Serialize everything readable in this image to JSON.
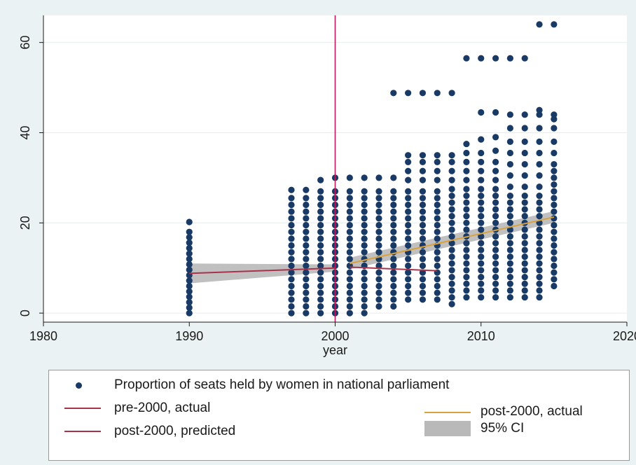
{
  "chart_data": {
    "type": "scatter",
    "xlabel": "year",
    "ylabel": "",
    "xlim": [
      1980,
      2020
    ],
    "ylim": [
      -2,
      66
    ],
    "x_ticks": [
      1980,
      1990,
      2000,
      2010,
      2020
    ],
    "y_ticks": [
      0,
      20,
      40,
      60
    ],
    "grid": true,
    "vline": 2000,
    "legend_position": "bottom",
    "colors": {
      "points": "#1a3a66",
      "pre_actual": "#a8324a",
      "post_actual": "#d9a23f",
      "post_predicted": "#a8324a",
      "ci": "#b9b9b9",
      "vline": "#c2185b",
      "background": "#eaf2f3",
      "plot_bg": "#ffffff"
    },
    "series": [
      {
        "name": "Proportion of seats held by women in national parliament",
        "kind": "points",
        "columns": [
          {
            "x": 1990,
            "values": [
              0,
              1.2,
              2.4,
              3.6,
              4.8,
              6,
              7.2,
              8.4,
              9.6,
              10.8,
              12,
              13.2,
              14.4,
              15.6,
              16.8,
              18,
              20.2
            ]
          },
          {
            "x": 1997,
            "values": [
              0,
              1.5,
              3,
              4.5,
              6,
              7.5,
              9,
              10.5,
              12,
              13.5,
              15,
              16.5,
              18,
              19.5,
              21,
              22.5,
              24,
              25.5,
              27.3
            ]
          },
          {
            "x": 1998,
            "values": [
              0,
              1.5,
              3,
              4.5,
              6,
              7.5,
              9,
              10.5,
              12,
              13.5,
              15,
              16.5,
              18,
              19.5,
              21,
              22.5,
              24,
              25.5,
              27.3
            ]
          },
          {
            "x": 1999,
            "values": [
              0,
              1.5,
              3,
              4.5,
              6,
              7.5,
              9,
              10.5,
              12,
              13.5,
              15,
              16.5,
              18,
              19.5,
              21,
              22.5,
              24,
              25.5,
              27,
              29.5
            ]
          },
          {
            "x": 2000,
            "values": [
              0,
              1.5,
              3,
              4.5,
              6,
              7.5,
              9,
              10.5,
              12,
              13.5,
              15,
              16.5,
              18,
              19.5,
              21,
              22.5,
              24,
              25.5,
              27,
              30
            ]
          },
          {
            "x": 2001,
            "values": [
              0,
              1.5,
              3,
              4.5,
              6,
              7.5,
              9,
              10.5,
              12,
              13.5,
              15,
              16.5,
              18,
              19.5,
              21,
              22.5,
              24,
              25.5,
              27,
              30
            ]
          },
          {
            "x": 2002,
            "values": [
              0,
              1.5,
              3,
              4.5,
              6,
              7.5,
              9,
              10.5,
              12,
              13.5,
              15,
              16.5,
              18,
              19.5,
              21,
              22.5,
              24,
              25.5,
              27,
              30
            ]
          },
          {
            "x": 2003,
            "values": [
              1.5,
              3,
              4.5,
              6,
              7.5,
              9,
              10.5,
              12,
              13.5,
              15,
              16.5,
              18,
              19.5,
              21,
              22.5,
              24,
              25.5,
              27,
              30
            ]
          },
          {
            "x": 2004,
            "values": [
              1.5,
              3,
              4.5,
              6,
              7.5,
              9,
              10.5,
              12,
              13.5,
              15,
              16.5,
              18,
              19.5,
              21,
              22.5,
              24,
              25.5,
              27,
              30,
              48.8
            ]
          },
          {
            "x": 2005,
            "values": [
              3,
              4.5,
              6,
              7.5,
              9,
              10.5,
              12,
              13.5,
              15,
              16.5,
              18,
              19.5,
              21,
              22.5,
              24,
              25.5,
              27,
              29.5,
              31.5,
              33.5,
              35,
              48.8
            ]
          },
          {
            "x": 2006,
            "values": [
              3,
              4.5,
              6,
              7.5,
              9,
              10.5,
              12,
              13.5,
              15,
              16.5,
              18,
              19.5,
              21,
              22.5,
              24,
              25.5,
              27,
              29.5,
              31.5,
              33.5,
              35,
              48.8
            ]
          },
          {
            "x": 2007,
            "values": [
              3,
              4.5,
              6,
              7.5,
              9,
              10.5,
              12,
              13.5,
              15,
              16.5,
              18,
              19.5,
              21,
              22.5,
              24,
              25.5,
              27,
              29.5,
              31.5,
              33.5,
              35,
              48.8
            ]
          },
          {
            "x": 2008,
            "values": [
              2,
              3.5,
              5,
              6.5,
              8,
              9.5,
              11,
              12.5,
              14,
              15.5,
              17,
              18.5,
              20,
              21.5,
              23,
              24.5,
              26,
              27.5,
              29.5,
              31.5,
              33.5,
              35,
              48.8
            ]
          },
          {
            "x": 2009,
            "values": [
              3.5,
              5,
              6.5,
              8,
              9.5,
              11,
              12.5,
              14,
              15.5,
              17,
              18.5,
              20,
              21.5,
              23,
              24.5,
              26,
              27.5,
              29.5,
              31.5,
              33.5,
              35.5,
              37.5,
              56.5
            ]
          },
          {
            "x": 2010,
            "values": [
              3.5,
              5,
              6.5,
              8,
              9.5,
              11,
              12.5,
              14,
              15.5,
              17,
              18.5,
              20,
              21.5,
              23,
              24.5,
              26,
              27.5,
              29.5,
              31.5,
              33.5,
              35.5,
              38.5,
              44.5,
              56.5
            ]
          },
          {
            "x": 2011,
            "values": [
              3.5,
              5,
              6.5,
              8,
              9.5,
              11,
              12.5,
              14,
              15.5,
              17,
              18.5,
              20,
              21.5,
              23,
              24.5,
              26,
              27.5,
              29.5,
              31.5,
              33.5,
              36,
              39,
              44.5,
              56.5
            ]
          },
          {
            "x": 2012,
            "values": [
              3.5,
              5,
              6.5,
              8,
              9.5,
              11,
              12.5,
              14,
              15.5,
              17,
              18.5,
              20,
              21.5,
              23,
              24.5,
              26,
              28,
              30.5,
              33,
              35.5,
              38,
              41,
              44,
              56.5
            ]
          },
          {
            "x": 2013,
            "values": [
              3.5,
              5,
              6.5,
              8,
              9.5,
              11,
              12.5,
              14,
              15.5,
              17,
              18.5,
              20,
              21.5,
              23,
              24.5,
              26,
              28,
              30.5,
              33,
              35.5,
              38,
              41,
              44,
              56.5
            ]
          },
          {
            "x": 2014,
            "values": [
              3.5,
              5,
              6.5,
              8,
              9.5,
              11,
              12.5,
              14,
              15.5,
              17,
              18.5,
              20,
              21.5,
              23,
              24.5,
              26,
              28,
              30.5,
              33,
              35.5,
              38,
              41,
              44,
              45,
              64
            ]
          },
          {
            "x": 2015,
            "values": [
              6,
              7.5,
              9,
              10.5,
              12,
              13.5,
              15,
              16.5,
              18,
              19.5,
              21,
              22.5,
              24,
              25.5,
              27,
              28.5,
              30,
              31.5,
              33,
              35.5,
              38,
              41,
              43,
              44,
              64
            ]
          }
        ]
      },
      {
        "name": "pre-2000, actual",
        "kind": "fit",
        "x": [
          1990,
          2000
        ],
        "y": [
          8.8,
          10.0
        ]
      },
      {
        "name": "post-2000, actual",
        "kind": "fit",
        "x": [
          2001,
          2015
        ],
        "y": [
          11.0,
          21.3
        ]
      },
      {
        "name": "post-2000, predicted",
        "kind": "fit",
        "x": [
          2001,
          2007
        ],
        "y": [
          10.2,
          9.4
        ]
      },
      {
        "name": "95% CI",
        "kind": "band",
        "bands": [
          {
            "x": [
              1990,
              2000
            ],
            "lo": [
              6.6,
              9.2
            ],
            "hi": [
              11.0,
              10.8
            ]
          },
          {
            "x": [
              2001,
              2015
            ],
            "lo": [
              9.7,
              20.0
            ],
            "hi": [
              12.3,
              22.6
            ]
          }
        ]
      }
    ]
  },
  "legend": {
    "items": [
      {
        "key": "dot",
        "label": "Proportion of seats held by women in national parliament"
      },
      {
        "key": "line-pre-actual",
        "label": "pre-2000, actual"
      },
      {
        "key": "line-post-predicted",
        "label": "post-2000, predicted"
      },
      {
        "key": "line-post-actual",
        "label": "post-2000, actual"
      },
      {
        "key": "band-ci",
        "label": "95% CI"
      }
    ]
  }
}
